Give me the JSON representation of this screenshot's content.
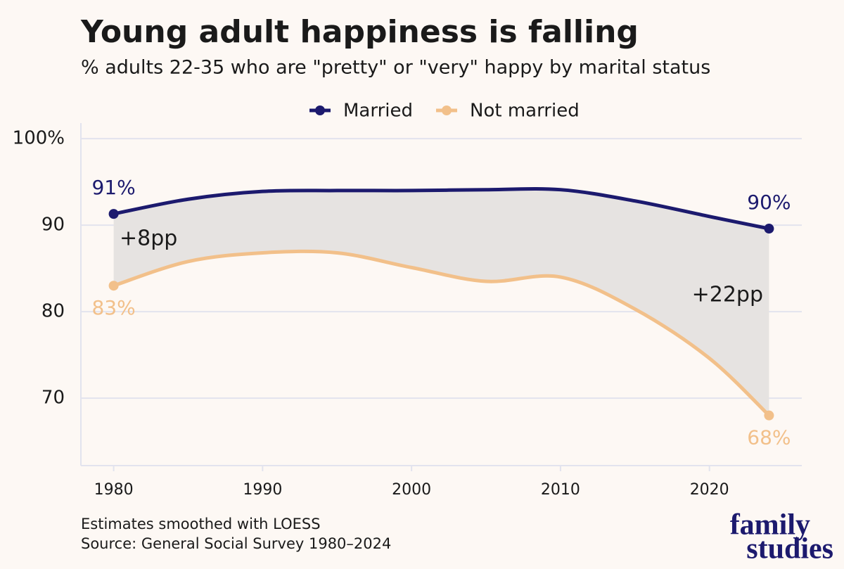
{
  "chart_data": {
    "type": "line",
    "title": "Young adult happiness is falling",
    "subtitle": "% adults 22-35 who are \"pretty\" or \"very\" happy by marital status",
    "x": [
      1980,
      1985,
      1990,
      1995,
      2000,
      2005,
      2010,
      2015,
      2020,
      2024
    ],
    "series": [
      {
        "name": "Married",
        "color": "#1c1a6e",
        "values": [
          91.3,
          93.0,
          93.9,
          94.0,
          94.0,
          94.1,
          94.1,
          92.8,
          91.0,
          89.6
        ],
        "value_labels": [
          "91%",
          null,
          null,
          null,
          null,
          null,
          null,
          null,
          null,
          "90%"
        ]
      },
      {
        "name": "Not married",
        "color": "#f2c08a",
        "values": [
          83.0,
          85.8,
          86.8,
          86.8,
          85.1,
          83.5,
          84.0,
          80.3,
          74.6,
          68.0
        ],
        "value_labels": [
          "83%",
          null,
          null,
          null,
          null,
          null,
          null,
          null,
          null,
          "68%"
        ]
      }
    ],
    "xlim": [
      1977.8,
      2026.2
    ],
    "xticks": [
      1980,
      1990,
      2000,
      2010,
      2020
    ],
    "ylim": [
      62.2,
      101.8
    ],
    "yticks": [
      {
        "value": 100,
        "label": "100%"
      },
      90,
      80,
      70
    ],
    "grid": true,
    "legend": "top",
    "annotations": [
      "+8pp",
      "+22pp"
    ],
    "notes": [
      "Estimates smoothed with LOESS",
      "Source: General Social Survey 1980–2024"
    ]
  },
  "logo": [
    "family",
    "studies"
  ]
}
